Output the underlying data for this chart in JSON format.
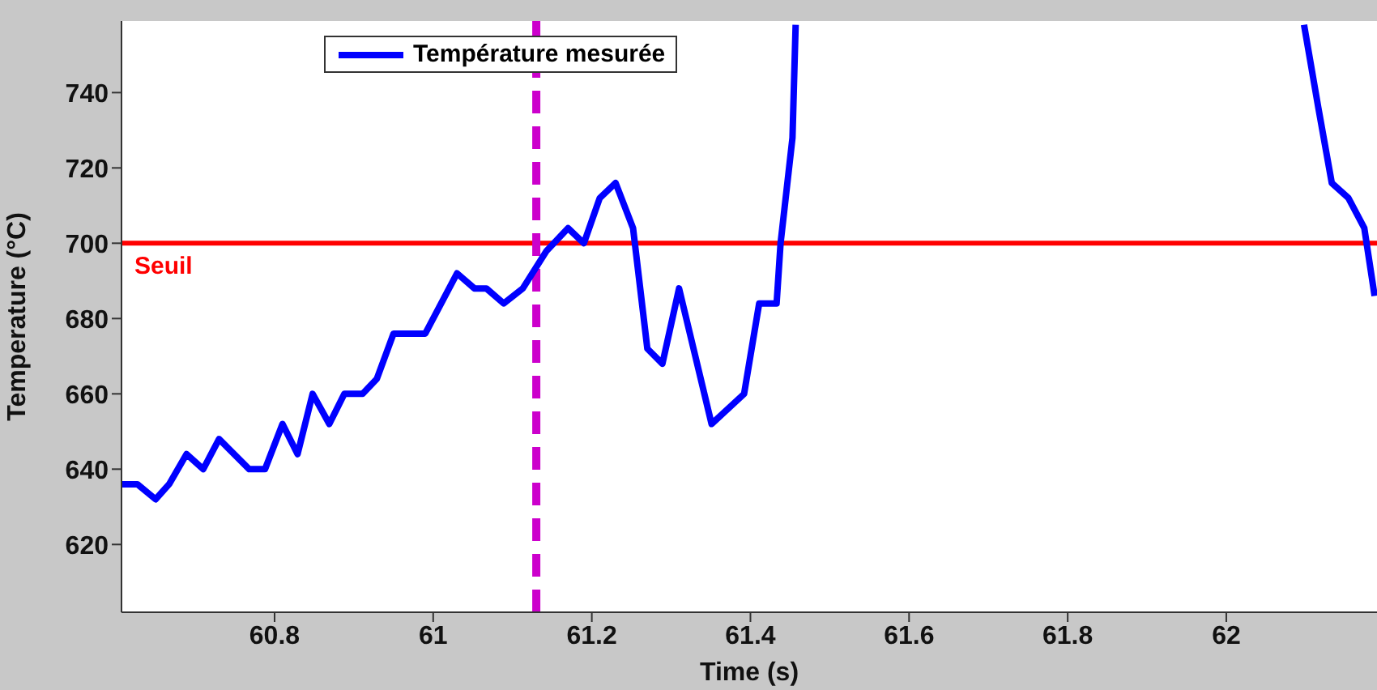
{
  "chart_data": {
    "type": "line",
    "xlabel": "Time (s)",
    "ylabel": "Temperature (°C)",
    "xlim": [
      60.607,
      62.19
    ],
    "ylim": [
      602,
      759
    ],
    "xticks": [
      60.8,
      61,
      61.2,
      61.4,
      61.6,
      61.8,
      62
    ],
    "yticks": [
      620,
      640,
      660,
      680,
      700,
      720,
      740
    ],
    "x": [
      60.607,
      60.627,
      60.65,
      60.667,
      60.689,
      60.71,
      60.73,
      60.768,
      60.788,
      60.81,
      60.829,
      60.848,
      60.869,
      60.888,
      60.911,
      60.929,
      60.95,
      60.99,
      61.03,
      61.052,
      61.067,
      61.089,
      61.113,
      61.143,
      61.17,
      61.19,
      61.21,
      61.23,
      61.252,
      61.27,
      61.289,
      61.31,
      61.351,
      61.392,
      61.411,
      61.433,
      61.438,
      61.453,
      61.457,
      61.8,
      62.098,
      62.116,
      62.133,
      62.154,
      62.174,
      62.187
    ],
    "series": [
      {
        "name": "Température mesurée",
        "color": "#0000ff",
        "values": [
          636,
          636,
          632,
          636,
          644,
          640,
          648,
          640,
          640,
          652,
          644,
          660,
          652,
          660,
          660,
          664,
          676,
          676,
          692,
          688,
          688,
          684,
          688,
          698,
          704,
          700,
          712,
          716,
          704,
          672,
          668,
          688,
          652,
          660,
          684,
          684,
          700,
          728,
          758,
          null,
          758,
          736,
          716,
          712,
          704,
          686
        ]
      }
    ],
    "ref_lines": [
      {
        "axis": "y",
        "value": 700,
        "label": "Seuil",
        "color": "#ff0000",
        "line_style": "solid"
      },
      {
        "axis": "x",
        "value": 61.13,
        "color": "#cc00cc",
        "line_style": "dashed"
      }
    ],
    "legend": "top",
    "grid": false,
    "marker": "none",
    "line_style": "solid"
  }
}
